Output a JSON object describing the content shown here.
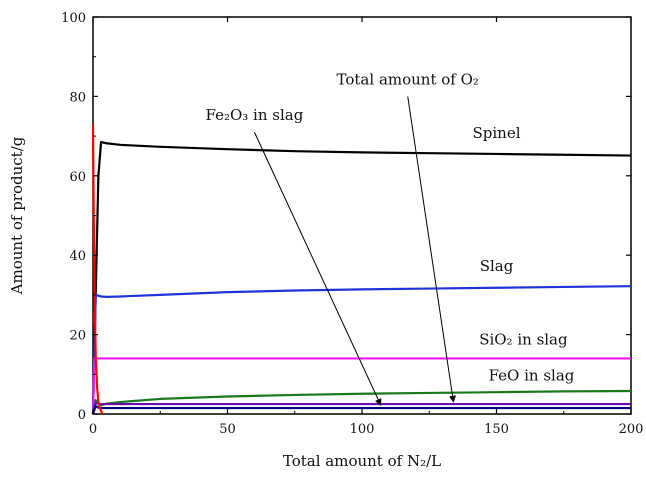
{
  "chart_data": {
    "type": "line",
    "xlabel": "Total amount of N₂/L",
    "ylabel": "Amount of product/g",
    "xlim": [
      0,
      200
    ],
    "ylim": [
      0,
      100
    ],
    "xticks": [
      0,
      50,
      100,
      150,
      200
    ],
    "yticks": [
      0,
      20,
      40,
      60,
      80,
      100
    ],
    "grid": false,
    "legend": "none",
    "series": [
      {
        "name": "Spinel",
        "color": "#000000",
        "x": [
          0,
          1,
          2,
          3,
          5,
          10,
          25,
          50,
          75,
          100,
          125,
          150,
          175,
          200
        ],
        "y": [
          0,
          30,
          60,
          68.5,
          68.2,
          67.8,
          67.3,
          66.7,
          66.2,
          65.9,
          65.7,
          65.5,
          65.3,
          65.1
        ]
      },
      {
        "name": "Slag",
        "color": "#1f34d8",
        "x": [
          0,
          1,
          2,
          3,
          5,
          10,
          25,
          50,
          75,
          100,
          125,
          150,
          175,
          200
        ],
        "y": [
          0,
          30,
          29.8,
          29.6,
          29.5,
          29.6,
          30.0,
          30.7,
          31.1,
          31.4,
          31.6,
          31.8,
          32.0,
          32.2
        ]
      },
      {
        "name": "SiO₂ in slag",
        "color": "#ee16ee",
        "x": [
          0,
          0.5,
          1,
          50,
          100,
          150,
          200
        ],
        "y": [
          0,
          14,
          14,
          14,
          14,
          14,
          14
        ]
      },
      {
        "name": "FeO in slag",
        "color": "#1a7a1a",
        "x": [
          0,
          1,
          2,
          3,
          5,
          10,
          25,
          50,
          75,
          100,
          125,
          150,
          175,
          200
        ],
        "y": [
          0,
          3.5,
          2.5,
          2.2,
          2.6,
          3.0,
          3.8,
          4.4,
          4.8,
          5.1,
          5.3,
          5.5,
          5.7,
          5.8
        ]
      },
      {
        "name": "Fe₂O₃ in slag",
        "color": "#6a0dad",
        "x": [
          0,
          1,
          2,
          3,
          5,
          10,
          25,
          50,
          100,
          150,
          200
        ],
        "y": [
          0,
          2.8,
          2.6,
          2.5,
          2.5,
          2.5,
          2.5,
          2.5,
          2.5,
          2.5,
          2.5
        ]
      },
      {
        "name": "Total amount of O₂",
        "color": "#000080",
        "x": [
          0,
          1,
          2,
          3,
          5,
          10,
          25,
          50,
          100,
          150,
          200
        ],
        "y": [
          0,
          2.0,
          1.6,
          1.5,
          1.5,
          1.5,
          1.5,
          1.5,
          1.5,
          1.5,
          1.5
        ]
      },
      {
        "name": "red curve",
        "color": "#ff0000",
        "x": [
          0,
          0.2,
          0.6,
          1.0,
          1.5,
          2.0,
          2.5,
          3.0,
          3.5
        ],
        "y": [
          73,
          55,
          30,
          15,
          7,
          3,
          1.5,
          0.8,
          0
        ]
      }
    ],
    "annotations": [
      {
        "text": "Spinel",
        "x": 150,
        "y": 69.5,
        "anchor": "middle"
      },
      {
        "text": "Slag",
        "x": 150,
        "y": 36,
        "anchor": "middle"
      },
      {
        "text": "SiO₂ in slag",
        "x": 160,
        "y": 17.5,
        "anchor": "middle"
      },
      {
        "text": "FeO in slag",
        "x": 163,
        "y": 8.5,
        "anchor": "middle"
      },
      {
        "text": "Fe₂O₃ in slag",
        "x": 60,
        "y": 74,
        "anchor": "middle"
      },
      {
        "text": "Total amount of O₂",
        "x": 117,
        "y": 83,
        "anchor": "middle"
      }
    ],
    "arrows": [
      {
        "from": [
          60,
          71
        ],
        "to": [
          107,
          2.2
        ],
        "label": "Fe₂O₃ in slag"
      },
      {
        "from": [
          117,
          80
        ],
        "to": [
          134,
          3.0
        ],
        "label": "Total amount of O₂"
      }
    ]
  }
}
